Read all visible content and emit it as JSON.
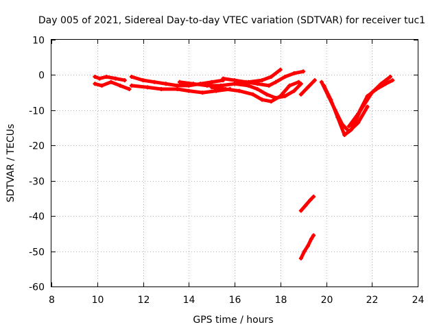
{
  "chart_data": {
    "type": "scatter",
    "title": "Day 005 of 2021, Sidereal Day-to-day VTEC variation (SDTVAR) for receiver tuc1",
    "xlabel": "GPS time / hours",
    "ylabel": "SDTVAR / TECUs",
    "xlim": [
      8,
      24
    ],
    "ylim": [
      -60,
      10
    ],
    "xticks": [
      8,
      10,
      12,
      14,
      16,
      18,
      20,
      22,
      24
    ],
    "yticks": [
      -60,
      -50,
      -40,
      -30,
      -20,
      -10,
      0,
      10
    ],
    "xtick_labels": [
      "8",
      "10",
      "12",
      "14",
      "16",
      "18",
      "20",
      "22",
      "24"
    ],
    "ytick_labels": [
      "-60",
      "-50",
      "-40",
      "-30",
      "-20",
      "-10",
      "0",
      "10"
    ],
    "grid": true,
    "series": [
      {
        "name": "arc-1",
        "color": "#ff0000",
        "x": [
          9.9,
          10.1,
          10.4,
          10.8,
          11.2
        ],
        "y": [
          -0.5,
          -1.0,
          -0.5,
          -1.0,
          -1.5
        ]
      },
      {
        "name": "arc-2",
        "color": "#ff0000",
        "x": [
          9.9,
          10.2,
          10.6,
          11.0,
          11.4
        ],
        "y": [
          -2.5,
          -3.0,
          -2.0,
          -3.0,
          -4.0
        ]
      },
      {
        "name": "arc-3",
        "color": "#ff0000",
        "x": [
          11.5,
          12.0,
          12.5,
          13.0,
          13.5,
          14.0,
          14.5,
          15.0,
          15.5
        ],
        "y": [
          -0.5,
          -1.5,
          -2.0,
          -2.5,
          -3.0,
          -3.0,
          -2.5,
          -2.0,
          -1.5
        ]
      },
      {
        "name": "arc-4",
        "color": "#ff0000",
        "x": [
          11.5,
          12.2,
          12.8,
          13.5,
          14.0,
          14.6,
          15.2,
          15.8
        ],
        "y": [
          -3.0,
          -3.5,
          -4.0,
          -4.0,
          -4.5,
          -5.0,
          -4.5,
          -4.0
        ]
      },
      {
        "name": "arc-5",
        "color": "#ff0000",
        "x": [
          13.6,
          14.2,
          14.8,
          15.4,
          16.0,
          16.6,
          17.2,
          17.6,
          18.0
        ],
        "y": [
          -2.0,
          -2.5,
          -3.0,
          -3.0,
          -2.5,
          -2.0,
          -1.5,
          -0.5,
          1.5
        ]
      },
      {
        "name": "arc-6",
        "color": "#ff0000",
        "x": [
          15.5,
          16.0,
          16.5,
          17.0,
          17.5,
          17.8,
          18.2,
          18.6,
          19.0
        ],
        "y": [
          -1.0,
          -1.5,
          -2.0,
          -2.5,
          -3.0,
          -2.0,
          -0.5,
          0.5,
          1.0
        ]
      },
      {
        "name": "arc-7",
        "color": "#ff0000",
        "x": [
          15.0,
          15.6,
          16.2,
          16.8,
          17.2,
          17.6,
          18.0,
          18.4,
          18.8
        ],
        "y": [
          -3.5,
          -4.0,
          -4.5,
          -5.5,
          -7.0,
          -7.5,
          -6.0,
          -3.0,
          -2.0
        ]
      },
      {
        "name": "arc-8",
        "color": "#ff0000",
        "x": [
          16.0,
          16.6,
          17.0,
          17.4,
          17.8,
          18.2,
          18.6,
          18.9
        ],
        "y": [
          -2.5,
          -3.0,
          -4.0,
          -5.5,
          -6.5,
          -6.0,
          -4.5,
          -2.5
        ]
      },
      {
        "name": "arc-9",
        "color": "#ff0000",
        "x": [
          18.9,
          19.2,
          19.5
        ],
        "y": [
          -5.5,
          -3.5,
          -1.5
        ]
      },
      {
        "name": "arc-10",
        "color": "#ff0000",
        "x": [
          19.8,
          20.1,
          20.4,
          20.7,
          21.0,
          21.4,
          21.8
        ],
        "y": [
          -2.0,
          -6.0,
          -10.0,
          -14.0,
          -16.0,
          -13.5,
          -9.0
        ]
      },
      {
        "name": "arc-11",
        "color": "#ff0000",
        "x": [
          19.9,
          20.2,
          20.5,
          20.8,
          21.1,
          21.5,
          22.0,
          22.4,
          22.8
        ],
        "y": [
          -3.0,
          -7.0,
          -12.0,
          -17.0,
          -15.5,
          -10.0,
          -5.0,
          -2.5,
          -0.5
        ]
      },
      {
        "name": "arc-12",
        "color": "#ff0000",
        "x": [
          21.0,
          21.4,
          21.8,
          22.2,
          22.6,
          22.9
        ],
        "y": [
          -14.5,
          -11.0,
          -6.0,
          -4.0,
          -2.5,
          -1.5
        ]
      },
      {
        "name": "arc-13",
        "color": "#ff0000",
        "x": [
          18.9,
          19.1,
          19.3,
          19.45
        ],
        "y": [
          -38.5,
          -37.0,
          -35.5,
          -34.5
        ]
      },
      {
        "name": "arc-14",
        "color": "#ff0000",
        "x": [
          18.9,
          19.05,
          19.2,
          19.35,
          19.45
        ],
        "y": [
          -52.0,
          -50.0,
          -48.5,
          -46.5,
          -45.5
        ]
      }
    ]
  }
}
